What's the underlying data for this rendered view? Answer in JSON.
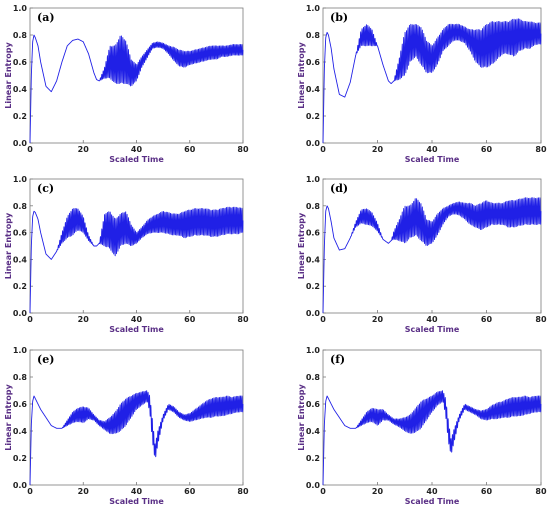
{
  "figure": {
    "panel_labels": [
      "(a)",
      "(b)",
      "(c)",
      "(d)",
      "(e)",
      "(f)"
    ]
  },
  "colors": {
    "series": "#2020e6",
    "axis_label": "#5a2f86",
    "tick": "#222222"
  },
  "chart_data": [
    {
      "type": "line",
      "panel": "(a)",
      "xlabel": "Scaled Time",
      "ylabel": "Linear Entropy",
      "xlim": [
        0,
        80
      ],
      "ylim": [
        0,
        1.0
      ],
      "xticks": [
        0,
        20,
        40,
        60,
        80
      ],
      "yticks": [
        "0.0",
        "0.2",
        "0.4",
        "0.6",
        "0.8",
        "1.0"
      ],
      "grid": false,
      "legend": "none",
      "series": [
        {
          "x": [
            0,
            0.5,
            1,
            1.5,
            2,
            3,
            4,
            6,
            8,
            10,
            12,
            14,
            16,
            18,
            20,
            22,
            24,
            25,
            26,
            28,
            30,
            32,
            34,
            36,
            38,
            40,
            42,
            44,
            46,
            48,
            50,
            52,
            54,
            56,
            58,
            60,
            62,
            64,
            66,
            68,
            70,
            72,
            74,
            76,
            78,
            80
          ],
          "y": [
            0.0,
            0.5,
            0.75,
            0.8,
            0.78,
            0.72,
            0.6,
            0.42,
            0.38,
            0.46,
            0.6,
            0.72,
            0.76,
            0.77,
            0.75,
            0.66,
            0.52,
            0.47,
            0.46,
            0.52,
            0.6,
            0.58,
            0.62,
            0.6,
            0.52,
            0.52,
            0.6,
            0.66,
            0.72,
            0.73,
            0.72,
            0.69,
            0.66,
            0.63,
            0.62,
            0.63,
            0.64,
            0.65,
            0.66,
            0.67,
            0.67,
            0.68,
            0.68,
            0.69,
            0.69,
            0.69
          ],
          "band": [
            0,
            0,
            0,
            0,
            0,
            0,
            0,
            0,
            0,
            0,
            0,
            0,
            0,
            0,
            0,
            0,
            0,
            0,
            0,
            0.04,
            0.12,
            0.14,
            0.18,
            0.16,
            0.1,
            0.06,
            0.04,
            0.03,
            0.02,
            0.02,
            0.02,
            0.03,
            0.05,
            0.06,
            0.06,
            0.05,
            0.05,
            0.05,
            0.05,
            0.05,
            0.05,
            0.04,
            0.04,
            0.04,
            0.04,
            0.04
          ]
        }
      ]
    },
    {
      "type": "line",
      "panel": "(b)",
      "xlabel": "Scaled Time",
      "ylabel": "Linear Entropy",
      "xlim": [
        0,
        80
      ],
      "ylim": [
        0,
        1.0
      ],
      "xticks": [
        0,
        20,
        40,
        60,
        80
      ],
      "yticks": [
        "0.0",
        "0.2",
        "0.4",
        "0.6",
        "0.8",
        "1.0"
      ],
      "grid": false,
      "legend": "none",
      "series": [
        {
          "x": [
            0,
            0.5,
            1,
            1.5,
            2,
            3,
            4,
            6,
            8,
            10,
            12,
            14,
            16,
            18,
            20,
            22,
            24,
            25,
            26,
            28,
            30,
            32,
            34,
            36,
            38,
            40,
            42,
            44,
            46,
            48,
            50,
            52,
            54,
            56,
            58,
            60,
            62,
            64,
            66,
            68,
            70,
            72,
            74,
            76,
            78,
            80
          ],
          "y": [
            0.0,
            0.55,
            0.78,
            0.82,
            0.8,
            0.7,
            0.55,
            0.36,
            0.34,
            0.45,
            0.65,
            0.78,
            0.8,
            0.78,
            0.72,
            0.58,
            0.46,
            0.44,
            0.46,
            0.55,
            0.66,
            0.74,
            0.76,
            0.72,
            0.64,
            0.62,
            0.68,
            0.76,
            0.8,
            0.82,
            0.82,
            0.8,
            0.76,
            0.72,
            0.7,
            0.72,
            0.74,
            0.76,
            0.78,
            0.78,
            0.78,
            0.8,
            0.8,
            0.8,
            0.81,
            0.81
          ],
          "band": [
            0,
            0,
            0,
            0,
            0,
            0,
            0,
            0,
            0,
            0,
            0,
            0.06,
            0.08,
            0.06,
            0,
            0,
            0,
            0,
            0,
            0.08,
            0.16,
            0.14,
            0.12,
            0.14,
            0.12,
            0.1,
            0.1,
            0.08,
            0.08,
            0.06,
            0.06,
            0.06,
            0.08,
            0.12,
            0.14,
            0.16,
            0.16,
            0.14,
            0.12,
            0.12,
            0.14,
            0.12,
            0.1,
            0.1,
            0.08,
            0.08
          ]
        }
      ]
    },
    {
      "type": "line",
      "panel": "(c)",
      "xlabel": "Scaled Time",
      "ylabel": "Linear Entropy",
      "xlim": [
        0,
        80
      ],
      "ylim": [
        0,
        1.0
      ],
      "xticks": [
        0,
        20,
        40,
        60,
        80
      ],
      "yticks": [
        "0.0",
        "0.2",
        "0.4",
        "0.6",
        "0.8",
        "1.0"
      ],
      "grid": false,
      "legend": "none",
      "series": [
        {
          "x": [
            0,
            0.5,
            1,
            1.5,
            2,
            3,
            4,
            6,
            8,
            10,
            12,
            14,
            16,
            18,
            20,
            22,
            24,
            25,
            26,
            28,
            30,
            32,
            34,
            36,
            38,
            40,
            42,
            44,
            46,
            48,
            50,
            52,
            54,
            56,
            58,
            60,
            62,
            64,
            66,
            68,
            70,
            72,
            74,
            76,
            78,
            80
          ],
          "y": [
            0.0,
            0.5,
            0.72,
            0.76,
            0.75,
            0.7,
            0.6,
            0.44,
            0.4,
            0.46,
            0.56,
            0.64,
            0.68,
            0.7,
            0.66,
            0.56,
            0.5,
            0.5,
            0.52,
            0.62,
            0.62,
            0.56,
            0.62,
            0.64,
            0.58,
            0.56,
            0.6,
            0.64,
            0.66,
            0.67,
            0.68,
            0.67,
            0.66,
            0.66,
            0.66,
            0.67,
            0.68,
            0.68,
            0.68,
            0.67,
            0.67,
            0.68,
            0.69,
            0.69,
            0.69,
            0.69
          ],
          "band": [
            0,
            0,
            0,
            0,
            0,
            0,
            0,
            0,
            0,
            0,
            0.04,
            0.08,
            0.1,
            0.08,
            0.06,
            0.02,
            0,
            0,
            0,
            0.12,
            0.14,
            0.14,
            0.12,
            0.12,
            0.08,
            0.04,
            0.04,
            0.05,
            0.06,
            0.07,
            0.08,
            0.08,
            0.08,
            0.08,
            0.1,
            0.1,
            0.1,
            0.1,
            0.1,
            0.1,
            0.1,
            0.1,
            0.1,
            0.1,
            0.1,
            0.09
          ]
        }
      ]
    },
    {
      "type": "line",
      "panel": "(d)",
      "xlabel": "Scaled Time",
      "ylabel": "Linear Entropy",
      "xlim": [
        0,
        80
      ],
      "ylim": [
        0,
        1.0
      ],
      "xticks": [
        0,
        20,
        40,
        60,
        80
      ],
      "yticks": [
        "0.0",
        "0.2",
        "0.4",
        "0.6",
        "0.8",
        "1.0"
      ],
      "grid": false,
      "legend": "none",
      "series": [
        {
          "x": [
            0,
            0.5,
            1,
            1.5,
            2,
            3,
            4,
            6,
            8,
            10,
            12,
            14,
            16,
            18,
            20,
            22,
            24,
            25,
            26,
            28,
            30,
            32,
            34,
            36,
            38,
            40,
            42,
            44,
            46,
            48,
            50,
            52,
            54,
            56,
            58,
            60,
            62,
            64,
            66,
            68,
            70,
            72,
            74,
            76,
            78,
            80
          ],
          "y": [
            0.0,
            0.5,
            0.76,
            0.8,
            0.78,
            0.68,
            0.56,
            0.47,
            0.48,
            0.56,
            0.66,
            0.72,
            0.72,
            0.7,
            0.64,
            0.55,
            0.52,
            0.54,
            0.58,
            0.62,
            0.66,
            0.68,
            0.72,
            0.68,
            0.6,
            0.6,
            0.66,
            0.72,
            0.76,
            0.78,
            0.78,
            0.76,
            0.74,
            0.72,
            0.72,
            0.74,
            0.74,
            0.74,
            0.74,
            0.74,
            0.74,
            0.75,
            0.76,
            0.76,
            0.76,
            0.76
          ],
          "band": [
            0,
            0,
            0,
            0,
            0,
            0,
            0,
            0,
            0,
            0,
            0.02,
            0.05,
            0.06,
            0.05,
            0.03,
            0,
            0,
            0,
            0.03,
            0.08,
            0.14,
            0.12,
            0.14,
            0.14,
            0.1,
            0.08,
            0.08,
            0.06,
            0.04,
            0.04,
            0.05,
            0.06,
            0.08,
            0.08,
            0.1,
            0.1,
            0.08,
            0.08,
            0.08,
            0.1,
            0.1,
            0.1,
            0.1,
            0.1,
            0.1,
            0.1
          ]
        }
      ]
    },
    {
      "type": "line",
      "panel": "(e)",
      "xlabel": "Scaled Time",
      "ylabel": "Linear Entropy",
      "xlim": [
        0,
        80
      ],
      "ylim": [
        0,
        1.0
      ],
      "xticks": [
        0,
        20,
        40,
        60,
        80
      ],
      "yticks": [
        "0.0",
        "0.2",
        "0.4",
        "0.6",
        "0.8",
        "1.0"
      ],
      "grid": false,
      "legend": "none",
      "series": [
        {
          "x": [
            0,
            0.5,
            1,
            1.5,
            2,
            3,
            4,
            6,
            8,
            10,
            12,
            14,
            16,
            18,
            20,
            22,
            24,
            26,
            28,
            30,
            32,
            34,
            36,
            38,
            40,
            42,
            44,
            45,
            46,
            47,
            48,
            50,
            52,
            54,
            56,
            58,
            60,
            62,
            64,
            66,
            68,
            70,
            72,
            74,
            76,
            78,
            80
          ],
          "y": [
            0.0,
            0.45,
            0.62,
            0.66,
            0.64,
            0.6,
            0.56,
            0.5,
            0.44,
            0.42,
            0.42,
            0.46,
            0.5,
            0.52,
            0.52,
            0.53,
            0.5,
            0.46,
            0.44,
            0.44,
            0.46,
            0.5,
            0.54,
            0.58,
            0.62,
            0.64,
            0.66,
            0.6,
            0.4,
            0.24,
            0.35,
            0.5,
            0.58,
            0.56,
            0.52,
            0.5,
            0.5,
            0.52,
            0.54,
            0.56,
            0.57,
            0.58,
            0.58,
            0.59,
            0.59,
            0.6,
            0.6
          ],
          "band": [
            0,
            0,
            0,
            0,
            0,
            0,
            0,
            0,
            0,
            0,
            0,
            0.02,
            0.04,
            0.05,
            0.06,
            0.04,
            0.02,
            0.02,
            0.03,
            0.06,
            0.08,
            0.1,
            0.1,
            0.08,
            0.06,
            0.05,
            0.04,
            0.06,
            0.08,
            0.06,
            0.05,
            0.02,
            0.02,
            0.02,
            0.02,
            0.02,
            0.03,
            0.04,
            0.05,
            0.06,
            0.07,
            0.07,
            0.07,
            0.07,
            0.06,
            0.06,
            0.06
          ]
        }
      ]
    },
    {
      "type": "line",
      "panel": "(f)",
      "xlabel": "Scaled Time",
      "ylabel": "Linear Entropy",
      "xlim": [
        0,
        80
      ],
      "ylim": [
        0,
        1.0
      ],
      "xticks": [
        0,
        20,
        40,
        60,
        80
      ],
      "yticks": [
        "0.0",
        "0.2",
        "0.4",
        "0.6",
        "0.8",
        "1.0"
      ],
      "grid": false,
      "legend": "none",
      "series": [
        {
          "x": [
            0,
            0.5,
            1,
            1.5,
            2,
            3,
            4,
            6,
            8,
            10,
            12,
            14,
            16,
            18,
            20,
            22,
            24,
            26,
            28,
            30,
            32,
            34,
            36,
            38,
            40,
            42,
            44,
            45,
            46,
            47,
            48,
            50,
            52,
            54,
            56,
            58,
            60,
            62,
            64,
            66,
            68,
            70,
            72,
            74,
            76,
            78,
            80
          ],
          "y": [
            0.0,
            0.45,
            0.62,
            0.66,
            0.64,
            0.6,
            0.56,
            0.5,
            0.44,
            0.42,
            0.42,
            0.46,
            0.5,
            0.52,
            0.5,
            0.52,
            0.5,
            0.47,
            0.46,
            0.45,
            0.45,
            0.48,
            0.52,
            0.56,
            0.6,
            0.64,
            0.66,
            0.58,
            0.4,
            0.28,
            0.36,
            0.5,
            0.58,
            0.56,
            0.54,
            0.52,
            0.52,
            0.54,
            0.55,
            0.56,
            0.57,
            0.58,
            0.58,
            0.59,
            0.59,
            0.6,
            0.6
          ],
          "band": [
            0,
            0,
            0,
            0,
            0,
            0,
            0,
            0,
            0,
            0,
            0,
            0.02,
            0.04,
            0.05,
            0.06,
            0.04,
            0.02,
            0.02,
            0.03,
            0.05,
            0.07,
            0.09,
            0.1,
            0.08,
            0.06,
            0.05,
            0.04,
            0.06,
            0.08,
            0.06,
            0.05,
            0.02,
            0.02,
            0.02,
            0.02,
            0.03,
            0.04,
            0.05,
            0.06,
            0.06,
            0.07,
            0.07,
            0.07,
            0.07,
            0.06,
            0.06,
            0.06
          ]
        }
      ]
    }
  ]
}
